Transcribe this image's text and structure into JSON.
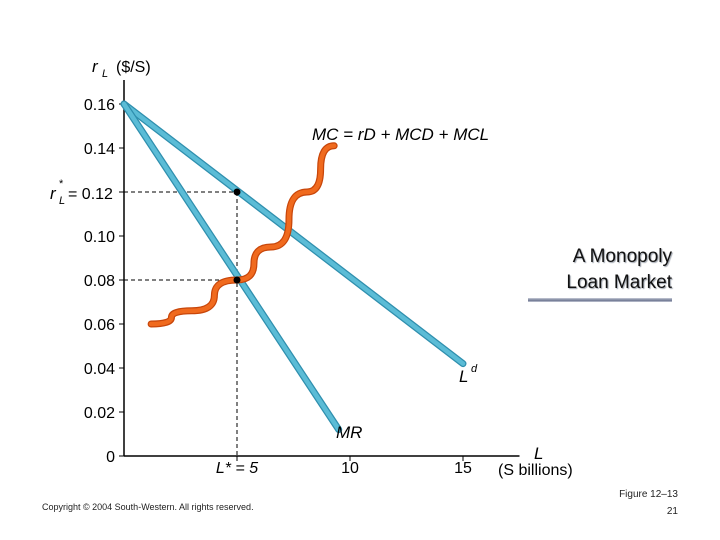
{
  "slide": {
    "title_line1": "A Monopoly",
    "title_line2": "Loan Market",
    "copyright": "Copyright © 2004 South-Western. All rights reserved.",
    "figure_label": "Figure 12–13",
    "page_number": "21"
  },
  "chart_data": {
    "type": "line",
    "xlabel": "L",
    "xlabel_unit": "(S billions)",
    "ylabel": "r",
    "ylabel_sub": "L",
    "ylabel_unit": "($/S)",
    "ylim": [
      0,
      0.16
    ],
    "xlim": [
      0,
      17.5
    ],
    "y_ticks": [
      "0",
      "0.02",
      "0.04",
      "0.06",
      "0.08",
      "0.10",
      "0.12",
      "0.14",
      "0.16"
    ],
    "y_tick_values": [
      0,
      0.02,
      0.04,
      0.06,
      0.08,
      0.1,
      0.12,
      0.14,
      0.16
    ],
    "x_ticks": [
      {
        "value": 5,
        "label": "L* = 5"
      },
      {
        "value": 10,
        "label": "10"
      },
      {
        "value": 15,
        "label": "15"
      }
    ],
    "series": [
      {
        "name": "Ld",
        "color": "#5bbcd6",
        "x": [
          0,
          15
        ],
        "y": [
          0.16,
          0.042
        ]
      },
      {
        "name": "MR",
        "color": "#5bbcd6",
        "x": [
          0,
          9.5
        ],
        "y": [
          0.16,
          0.012
        ]
      },
      {
        "name": "MC = rD + MCD + MCL",
        "color": "#f06a1e",
        "x": [
          1.2,
          3,
          5,
          6.5,
          8.1,
          9.3
        ],
        "y": [
          0.06,
          0.066,
          0.08,
          0.095,
          0.12,
          0.141
        ]
      }
    ],
    "series_labels": {
      "ld_main": "L",
      "ld_sup": "d",
      "mr": "MR",
      "mc_text": "MC = rD + MCD + MCL"
    },
    "equilibrium": {
      "quantity": 5,
      "rate": 0.12,
      "mr_mc_rate": 0.08,
      "rate_label_main": "r",
      "rate_label_sup": "*",
      "rate_label_sub": "L",
      "rate_label_value": "= 0.12"
    },
    "grid": false
  }
}
